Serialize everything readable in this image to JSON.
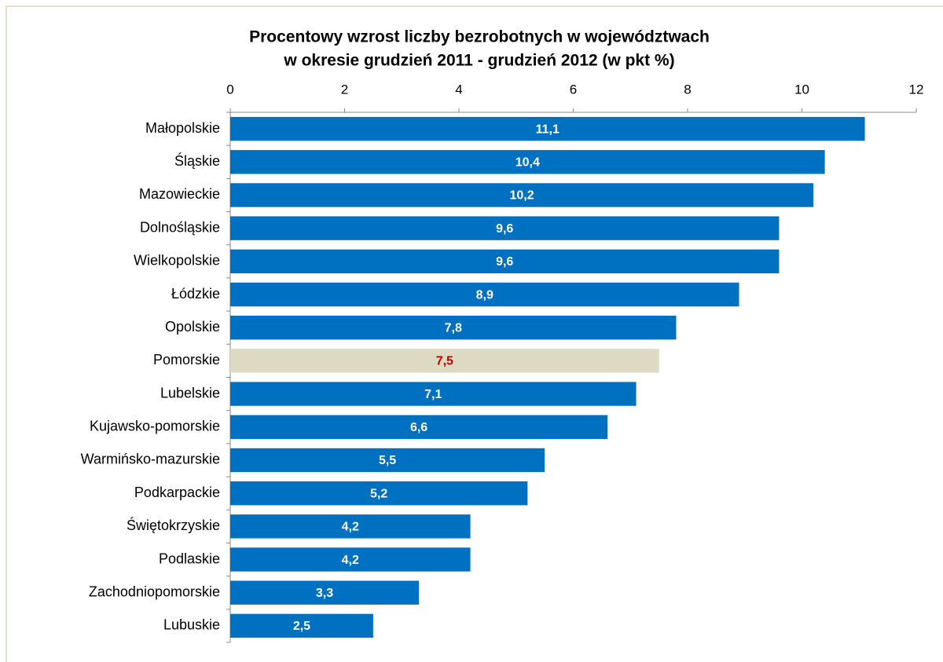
{
  "chart_data": {
    "type": "barh",
    "title": [
      "Procentowy wzrost liczby bezrobotnych w województwach",
      "w okresie grudzień 2011 - grudzień 2012 (w pkt %)"
    ],
    "categories": [
      "Małopolskie",
      "Śląskie",
      "Mazowieckie",
      "Dolnośląskie",
      "Wielkopolskie",
      "Łódzkie",
      "Opolskie",
      "Pomorskie",
      "Lubelskie",
      "Kujawsko-pomorskie",
      "Warmińsko-mazurskie",
      "Podkarpackie",
      "Świętokrzyskie",
      "Podlaskie",
      "Zachodniopomorskie",
      "Lubuskie"
    ],
    "values": [
      11.1,
      10.4,
      10.2,
      9.6,
      9.6,
      8.9,
      7.8,
      7.5,
      7.1,
      6.6,
      5.5,
      5.2,
      4.2,
      4.2,
      3.3,
      2.5
    ],
    "value_labels": [
      "11,1",
      "10,4",
      "10,2",
      "9,6",
      "9,6",
      "8,9",
      "7,8",
      "7,5",
      "7,1",
      "6,6",
      "5,5",
      "5,2",
      "4,2",
      "4,2",
      "3,3",
      "2,5"
    ],
    "colors": [
      "#0070c0",
      "#0070c0",
      "#0070c0",
      "#0070c0",
      "#0070c0",
      "#0070c0",
      "#0070c0",
      "#ddd9c3",
      "#0070c0",
      "#0070c0",
      "#0070c0",
      "#0070c0",
      "#0070c0",
      "#0070c0",
      "#0070c0",
      "#0070c0"
    ],
    "value_label_colors": [
      "#ffffff",
      "#ffffff",
      "#ffffff",
      "#ffffff",
      "#ffffff",
      "#ffffff",
      "#ffffff",
      "#c00000",
      "#ffffff",
      "#ffffff",
      "#ffffff",
      "#ffffff",
      "#ffffff",
      "#ffffff",
      "#ffffff",
      "#ffffff"
    ],
    "xlim": [
      0,
      12
    ],
    "xticks": [
      0,
      2,
      4,
      6,
      8,
      10,
      12
    ],
    "xaxis_position": "top",
    "grid": false
  }
}
